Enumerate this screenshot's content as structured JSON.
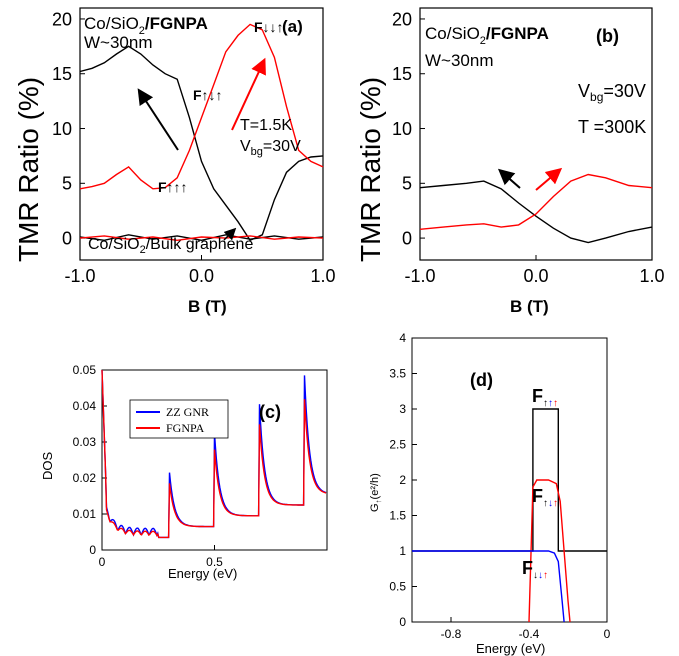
{
  "chart_data": [
    {
      "panel": "a",
      "type": "line",
      "panel_label": "(a)",
      "title_prefix": "Co/SiO",
      "title_sub": "2",
      "title_bold": "/FGNPA",
      "width_label": "W~30nm",
      "xlabel": "B (T)",
      "ylabel": "TMR Ratio  (%)",
      "xlim": [
        -1.0,
        1.0
      ],
      "ylim": [
        -2,
        21
      ],
      "xticks": [
        "-1.0",
        "0.0",
        "1.0"
      ],
      "yticks": [
        "0",
        "5",
        "10",
        "15",
        "20"
      ],
      "temperature": "T=1.5K",
      "gate_label": "V",
      "gate_sub": "bg",
      "gate_value": "=30V",
      "labels": {
        "F_down_down_up": "F↓↓↑",
        "F_up_down_up": "F↑↓↑",
        "F_up_up_up": "F↑↑↑"
      },
      "bulk_label": "Co/SiO",
      "bulk_sub": "2",
      "bulk_label_end": "/Bulk graphene",
      "colors": {
        "black": "#000000",
        "red": "#ff0000"
      },
      "series": [
        {
          "color": "#000000",
          "x": [
            -1.0,
            -0.9,
            -0.8,
            -0.7,
            -0.6,
            -0.5,
            -0.4,
            -0.3,
            -0.2,
            -0.1,
            0.0,
            0.1,
            0.2,
            0.3,
            0.4,
            0.5,
            0.6,
            0.7,
            0.8,
            0.9,
            1.0
          ],
          "y": [
            15.2,
            15.5,
            16.0,
            16.8,
            17.5,
            16.8,
            15.8,
            15.0,
            14.5,
            11.0,
            7.0,
            4.5,
            3.0,
            1.5,
            -0.2,
            0.3,
            3.5,
            6.0,
            7.0,
            7.4,
            7.5
          ]
        },
        {
          "color": "#ff0000",
          "x": [
            -1.0,
            -0.9,
            -0.8,
            -0.7,
            -0.6,
            -0.5,
            -0.4,
            -0.3,
            -0.2,
            -0.1,
            0.0,
            0.1,
            0.2,
            0.3,
            0.4,
            0.5,
            0.6,
            0.7,
            0.8,
            0.9,
            1.0
          ],
          "y": [
            4.5,
            4.7,
            5.0,
            5.8,
            6.5,
            5.3,
            4.5,
            4.6,
            5.5,
            8.0,
            11.0,
            14.0,
            17.0,
            18.5,
            19.5,
            19.0,
            16.5,
            12.0,
            8.0,
            7.0,
            6.5
          ]
        },
        {
          "color": "#000000",
          "x": [
            -1.0,
            -0.8,
            -0.6,
            -0.4,
            -0.2,
            0.0,
            0.2,
            0.4,
            0.6,
            0.8,
            1.0
          ],
          "y": [
            0.1,
            -0.2,
            0.3,
            -0.1,
            0.2,
            -0.2,
            0.3,
            -0.1,
            0.2,
            -0.1,
            0.1
          ]
        },
        {
          "color": "#ff0000",
          "x": [
            -1.0,
            -0.8,
            -0.6,
            -0.4,
            -0.2,
            0.0,
            0.2,
            0.4,
            0.6,
            0.8,
            1.0
          ],
          "y": [
            0.0,
            0.2,
            -0.1,
            0.1,
            -0.2,
            0.1,
            0.0,
            0.2,
            -0.1,
            0.1,
            0.0
          ]
        }
      ]
    },
    {
      "panel": "b",
      "type": "line",
      "panel_label": "(b)",
      "title_prefix": "Co/SiO",
      "title_sub": "2",
      "title_bold": "/FGNPA",
      "width_label": "W~30nm",
      "xlabel": "B (T)",
      "ylabel": "TMR Ratio  (%)",
      "xlim": [
        -1.0,
        1.0
      ],
      "ylim": [
        -2,
        21
      ],
      "xticks": [
        "-1.0",
        "0.0",
        "1.0"
      ],
      "yticks": [
        "0",
        "5",
        "10",
        "15",
        "20"
      ],
      "gate_label": "V",
      "gate_sub": "bg",
      "gate_value": "=30V",
      "temperature": "T =300K",
      "series": [
        {
          "color": "#000000",
          "x": [
            -1.0,
            -0.8,
            -0.6,
            -0.45,
            -0.3,
            -0.15,
            0.0,
            0.15,
            0.3,
            0.45,
            0.6,
            0.8,
            1.0
          ],
          "y": [
            4.6,
            4.8,
            5.0,
            5.2,
            4.5,
            3.2,
            2.0,
            0.9,
            0.0,
            -0.4,
            0.0,
            0.6,
            1.0
          ]
        },
        {
          "color": "#ff0000",
          "x": [
            -1.0,
            -0.8,
            -0.6,
            -0.45,
            -0.3,
            -0.15,
            0.0,
            0.15,
            0.3,
            0.45,
            0.6,
            0.8,
            1.0
          ],
          "y": [
            0.8,
            1.0,
            1.2,
            1.3,
            1.0,
            1.2,
            2.2,
            3.8,
            5.2,
            5.8,
            5.5,
            4.8,
            4.6
          ]
        }
      ]
    },
    {
      "panel": "c",
      "type": "line",
      "panel_label": "(c)",
      "xlabel": "Energy (eV)",
      "ylabel": "DOS",
      "xlim": [
        0,
        1.0
      ],
      "ylim": [
        0,
        0.05
      ],
      "xticks": [
        "0",
        "0.5"
      ],
      "yticks": [
        "0",
        "0.01",
        "0.02",
        "0.03",
        "0.04",
        "0.05"
      ],
      "legend": [
        "ZZ GNR",
        "FGNPA"
      ],
      "series": [
        {
          "name": "ZZ GNR",
          "color": "#0000ff"
        },
        {
          "name": "FGNPA",
          "color": "#ff0000"
        }
      ]
    },
    {
      "panel": "d",
      "type": "line",
      "panel_label": "(d)",
      "xlabel": "Energy (eV)",
      "ylabel_main": "G",
      "ylabel_sub": "↑",
      "ylabel_end": "(e²/h)",
      "xlim": [
        -1.0,
        0
      ],
      "ylim": [
        0,
        4
      ],
      "xticks": [
        "-0.8",
        "-0.4",
        "0"
      ],
      "yticks": [
        "0",
        "0.5",
        "1",
        "1.5",
        "2",
        "2.5",
        "3",
        "3.5",
        "4"
      ],
      "labels": {
        "F_up_up_up": {
          "F": "F",
          "a": "↑",
          "b": "↑",
          "c": "↑"
        },
        "F_up_down_up": {
          "F": "F",
          "a": "↑",
          "b": "↓",
          "c": "↑"
        },
        "F_down_down_up": {
          "F": "F",
          "a": "↓",
          "b": "↓",
          "c": "↑"
        }
      },
      "series": [
        {
          "color": "#000000",
          "x": [
            -1.0,
            -0.38,
            -0.38,
            -0.25,
            -0.25,
            0
          ],
          "y": [
            1,
            1,
            3,
            3,
            1,
            1
          ]
        },
        {
          "color": "#ff0000",
          "x": [
            -0.4,
            -0.38,
            -0.36,
            -0.3,
            -0.26,
            -0.24,
            -0.22,
            -0.2,
            -0.19
          ],
          "y": [
            0,
            1.9,
            2.0,
            2.0,
            1.95,
            1.7,
            1.0,
            0.3,
            0
          ]
        },
        {
          "color": "#0000ff",
          "x": [
            -1.0,
            -0.6,
            -0.3,
            -0.27,
            -0.25,
            -0.23,
            -0.22
          ],
          "y": [
            1,
            1,
            1,
            0.97,
            0.85,
            0.3,
            0
          ]
        }
      ]
    }
  ]
}
